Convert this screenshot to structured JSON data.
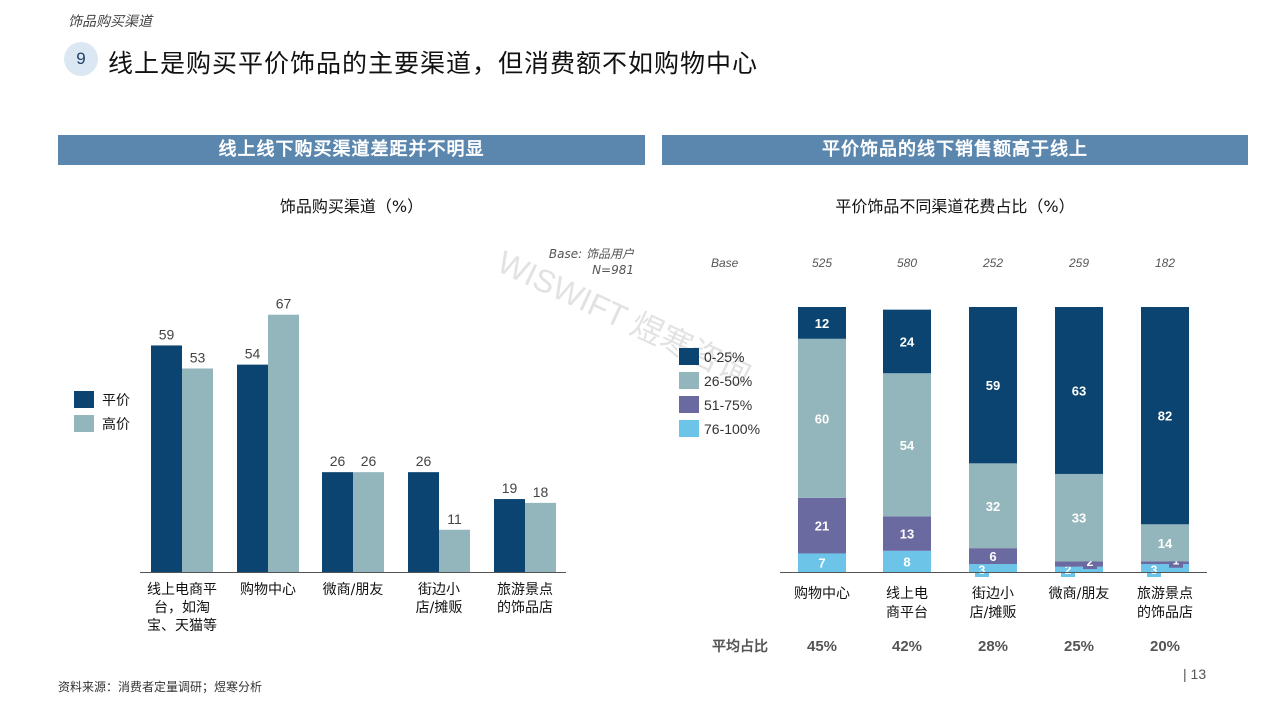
{
  "breadcrumb": "饰品购买渠道",
  "slide_number": "9",
  "title": "线上是购买平价饰品的主要渠道，但消费额不如购物中心",
  "left_banner": "线上线下购买渠道差距并不明显",
  "right_banner": "平价饰品的线下销售额高于线上",
  "source": "资料来源：消费者定量调研；煜寒分析",
  "page_number": "| 13",
  "watermark": "WISWIFT 煜寒咨询",
  "colors": {
    "navy": "#0b4470",
    "teal": "#93b6bc",
    "purple": "#6a6aa1",
    "sky": "#6cc5e9",
    "banner": "#5b87ae"
  },
  "chart_data": [
    {
      "type": "bar",
      "title": "饰品购买渠道（%）",
      "base_label": "Base: 饰品用户",
      "n_label": "N=981",
      "categories": [
        "线上电商平\n台，如淘\n宝、天猫等",
        "购物中心",
        "微商/朋友",
        "街边小\n店/摊贩",
        "旅游景点\n的饰品店"
      ],
      "series": [
        {
          "name": "平价",
          "color": "#0b4470",
          "values": [
            59,
            54,
            26,
            26,
            19
          ]
        },
        {
          "name": "高价",
          "color": "#93b6bc",
          "values": [
            53,
            67,
            26,
            11,
            18
          ]
        }
      ],
      "ylim": [
        0,
        67
      ],
      "legend_position": "left"
    },
    {
      "type": "bar",
      "stacked": true,
      "title": "平价饰品不同渠道花费占比（%）",
      "base_label": "Base",
      "bases": [
        "525",
        "580",
        "252",
        "259",
        "182"
      ],
      "categories": [
        "购物中心",
        "线上电\n商平台",
        "街边小\n店/摊贩",
        "微商/朋友",
        "旅游景点\n的饰品店"
      ],
      "series": [
        {
          "name": "76-100%",
          "color": "#6cc5e9",
          "values": [
            7,
            8,
            3,
            2,
            3
          ]
        },
        {
          "name": "51-75%",
          "color": "#6a6aa1",
          "values": [
            21,
            13,
            6,
            2,
            1
          ]
        },
        {
          "name": "26-50%",
          "color": "#93b6bc",
          "values": [
            60,
            54,
            32,
            33,
            14
          ]
        },
        {
          "name": "0-25%",
          "color": "#0b4470",
          "values": [
            12,
            24,
            59,
            63,
            82
          ]
        }
      ],
      "legend_order": [
        "0-25%",
        "26-50%",
        "51-75%",
        "76-100%"
      ],
      "avg_label": "平均占比",
      "averages": [
        "45%",
        "42%",
        "28%",
        "25%",
        "20%"
      ],
      "ylim": [
        0,
        100
      ],
      "legend_position": "top-left"
    }
  ]
}
